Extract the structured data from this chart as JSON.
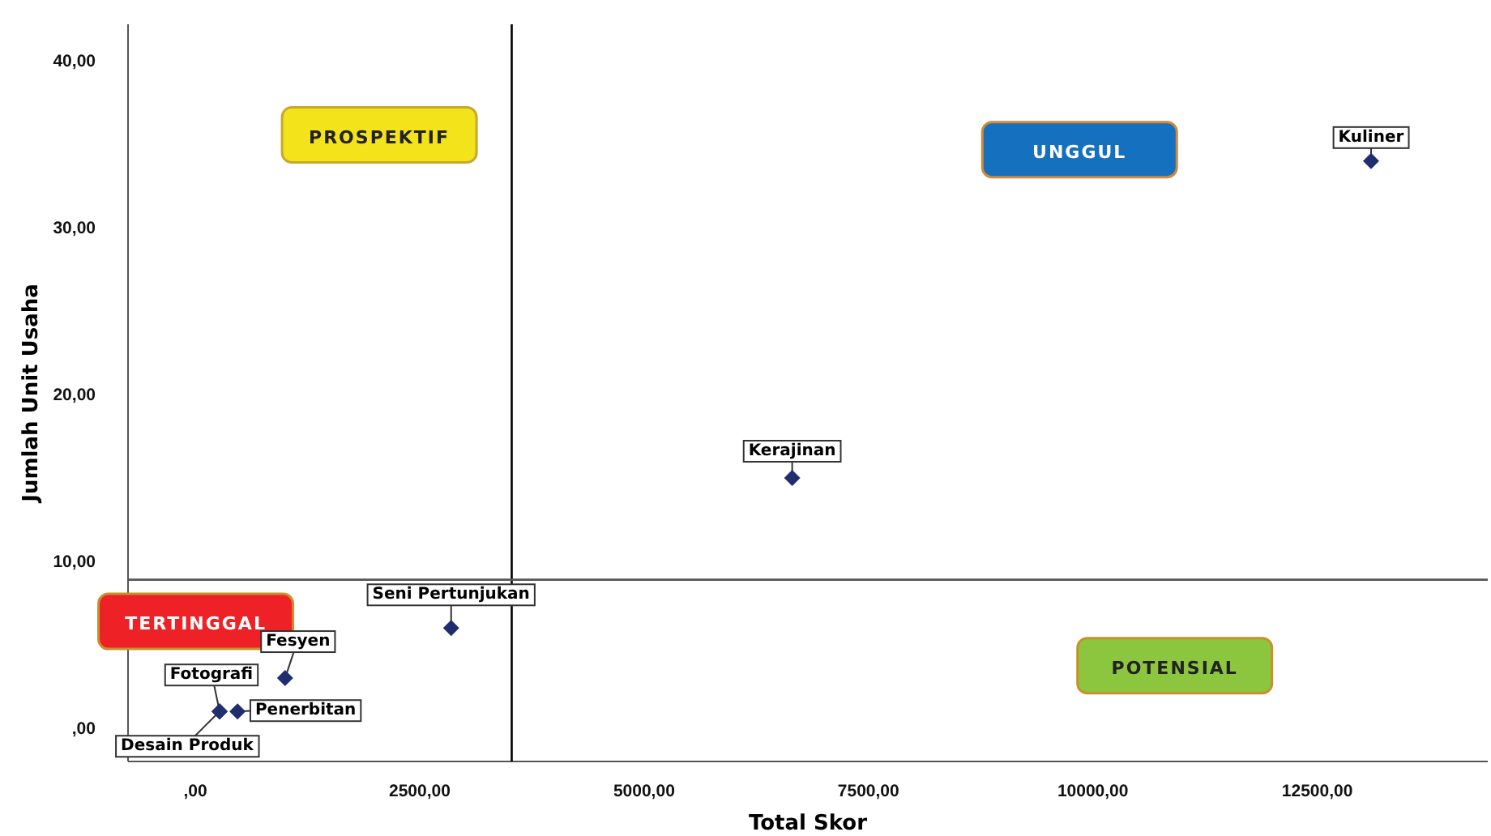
{
  "chart_data": {
    "type": "scatter",
    "xlabel": "Total Skor",
    "ylabel": "Jumlah Unit Usaha",
    "x": [
      13100,
      6650,
      2850,
      1000,
      270,
      470,
      270
    ],
    "values": [
      34,
      15,
      6,
      3,
      1,
      1,
      1
    ],
    "value_labels": [
      "Kuliner",
      "Kerajinan",
      "Seni Pertunjukan",
      "Fesyen",
      "Fotografi",
      "Penerbitan",
      "Desain Produk"
    ],
    "color": "#1f2f6e",
    "marker": "diamond",
    "grid": false,
    "xlim": [
      -750,
      14400
    ],
    "ylim": [
      -2,
      42.2
    ],
    "xticks": [
      {
        "value": 0,
        "label": ",00"
      },
      {
        "value": 2500,
        "label": "2500,00"
      },
      {
        "value": 5000,
        "label": "5000,00"
      },
      {
        "value": 7500,
        "label": "7500,00"
      },
      {
        "value": 10000,
        "label": "10000,00"
      },
      {
        "value": 12500,
        "label": "12500,00"
      }
    ],
    "yticks": [
      {
        "value": 0,
        "label": ",00"
      },
      {
        "value": 10,
        "label": "10,00"
      },
      {
        "value": 20,
        "label": "20,00"
      },
      {
        "value": 30,
        "label": "30,00"
      },
      {
        "value": 40,
        "label": "40,00"
      }
    ],
    "ref_lines": [
      {
        "axis": "x",
        "value": 3525,
        "color": "#000000"
      },
      {
        "axis": "y",
        "value": 8.9,
        "color": "#555555"
      }
    ],
    "annotations": [
      "PROSPEKTIF",
      "UNGGUL",
      "TERTINGGAL",
      "POTENSIAL"
    ]
  }
}
